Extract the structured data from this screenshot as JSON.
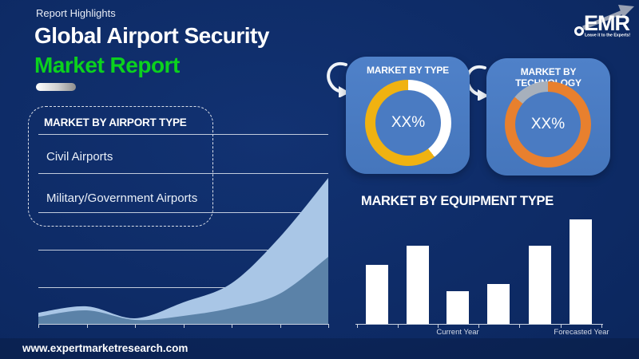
{
  "header": {
    "eyebrow": "Report Highlights",
    "title_line1": "Global Airport Security",
    "title_line2": "Market Report"
  },
  "logo": {
    "name": "EMR",
    "tagline": "Leave it to the Experts!"
  },
  "colors": {
    "background_navy": "#0D2A64",
    "panel_blue": "#4A7BC2",
    "accent_green": "#0BD11E",
    "donut_gold": "#F0B211",
    "donut_orange": "#E8802E",
    "donut_gray": "#A7B0BC",
    "area_light_blue": "#A9C6E6",
    "area_steel_blue": "#5B82A8",
    "bar_white": "#FFFFFF"
  },
  "airport_type_box": {
    "heading": "MARKET BY AIRPORT TYPE",
    "items": [
      "Civil Airports",
      "Military/Government Airports"
    ]
  },
  "footer": {
    "website": "www.expertmarketresearch.com"
  },
  "chart_data": [
    {
      "id": "market-by-type-donut",
      "type": "pie",
      "donut": true,
      "title": "MARKET BY TYPE",
      "center_label": "XX%",
      "start_angle": "top",
      "direction": "clockwise",
      "slices": [
        {
          "label": "highlighted-share",
          "value": 39.5,
          "color": "#FFFFFF"
        },
        {
          "label": "remaining-share",
          "value": 60.5,
          "color": "#F0B211"
        }
      ]
    },
    {
      "id": "market-by-technology-donut",
      "type": "pie",
      "donut": true,
      "title": "MARKET BY TECHNOLOGY",
      "center_label": "XX%",
      "start_angle": "top",
      "direction": "clockwise",
      "slices": [
        {
          "label": "remaining-share",
          "value": 86,
          "color": "#E8802E"
        },
        {
          "label": "highlighted-share",
          "value": 14,
          "color": "#A7B0BC"
        }
      ]
    },
    {
      "id": "market-growth-area",
      "type": "area",
      "title": "",
      "x": [
        0,
        1,
        2,
        3,
        4,
        5,
        6
      ],
      "series": [
        {
          "name": "upper-band",
          "color": "#A9C6E6",
          "values": [
            14,
            22,
            7,
            27,
            51,
            109,
            183
          ]
        },
        {
          "name": "lower-band",
          "color": "#5B82A8",
          "values": [
            9,
            17,
            5,
            10,
            20,
            38,
            84
          ]
        }
      ],
      "ylim": [
        0,
        196
      ],
      "grid": true,
      "legend": "none"
    },
    {
      "id": "market-by-equipment-bar",
      "type": "bar",
      "title": "MARKET BY EQUIPMENT TYPE",
      "categories": [
        "",
        "",
        "Current Year",
        "",
        "",
        "Forecasted Year"
      ],
      "values": [
        74,
        98,
        41,
        50,
        98,
        131
      ],
      "bar_color": "#FFFFFF",
      "ylim": [
        0,
        146
      ],
      "legend": "none"
    }
  ]
}
